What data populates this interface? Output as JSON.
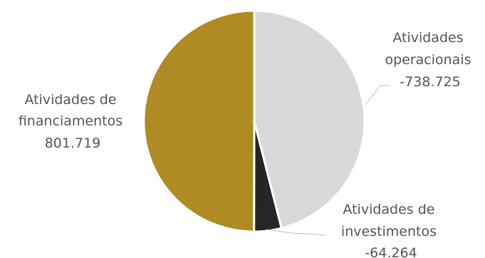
{
  "chart_data": {
    "type": "pie",
    "title": "",
    "legend": "none",
    "slices": [
      {
        "category_line1": "Atividades",
        "category_line2": "operacionais",
        "value": -738725,
        "value_label": "-738.725",
        "color": "#d9d9d9"
      },
      {
        "category_line1": "Atividades de",
        "category_line2": "investimentos",
        "value": -64264,
        "value_label": "-64.264",
        "color": "#262626"
      },
      {
        "category_line1": "Atividades de",
        "category_line2": "financiamentos",
        "value": 801719,
        "value_label": "801.719",
        "color": "#b08a22"
      }
    ]
  }
}
